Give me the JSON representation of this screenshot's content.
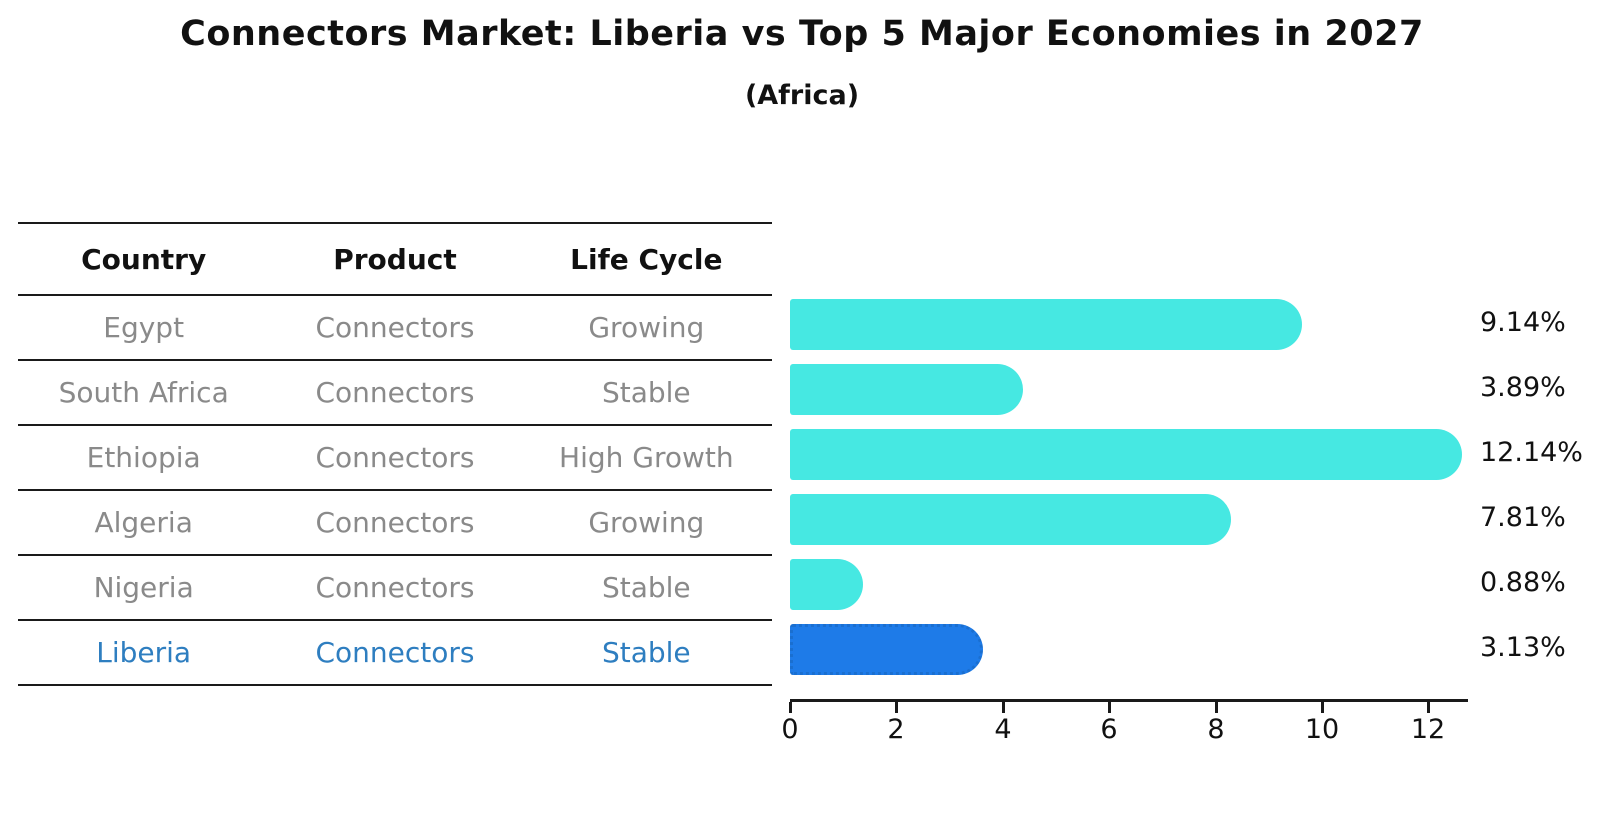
{
  "header": {
    "title": "Connectors Market: Liberia vs Top 5 Major Economies in 2027",
    "subtitle": "(Africa)"
  },
  "table": {
    "headers": [
      "Country",
      "Product",
      "Life Cycle"
    ],
    "rows": [
      {
        "country": "Egypt",
        "product": "Connectors",
        "life_cycle": "Growing",
        "highlight": false
      },
      {
        "country": "South Africa",
        "product": "Connectors",
        "life_cycle": "Stable",
        "highlight": false
      },
      {
        "country": "Ethiopia",
        "product": "Connectors",
        "life_cycle": "High Growth",
        "highlight": false
      },
      {
        "country": "Algeria",
        "product": "Connectors",
        "life_cycle": "Growing",
        "highlight": false
      },
      {
        "country": "Nigeria",
        "product": "Connectors",
        "life_cycle": "Stable",
        "highlight": false
      },
      {
        "country": "Liberia",
        "product": "Connectors",
        "life_cycle": "Stable",
        "highlight": true
      }
    ]
  },
  "chart_data": {
    "type": "bar",
    "orientation": "horizontal",
    "title": "Connectors Market: Liberia vs Top 5 Major Economies in 2027",
    "subtitle": "(Africa)",
    "categories": [
      "Egypt",
      "South Africa",
      "Ethiopia",
      "Algeria",
      "Nigeria",
      "Liberia"
    ],
    "values": [
      9.14,
      3.89,
      12.14,
      7.81,
      0.88,
      3.13
    ],
    "value_labels": [
      "9.14%",
      "3.89%",
      "12.14%",
      "7.81%",
      "0.88%",
      "3.13%"
    ],
    "highlight_index": 5,
    "xlabel": "",
    "ylabel": "",
    "xlim": [
      0,
      12.75
    ],
    "x_ticks": [
      0,
      2,
      4,
      6,
      8,
      10,
      12
    ],
    "grid": false,
    "legend": null,
    "colors": {
      "bar_default": "#46e8e2",
      "bar_highlight": "#1e7be8",
      "bar_highlight_edge": "#1a6fd0",
      "highlight_text": "#2e7ec0",
      "row_text": "#8a8a8a",
      "header_text": "#111111",
      "value_text": "#111111",
      "axis": "#1a1a1a",
      "background": "#ffffff"
    }
  }
}
